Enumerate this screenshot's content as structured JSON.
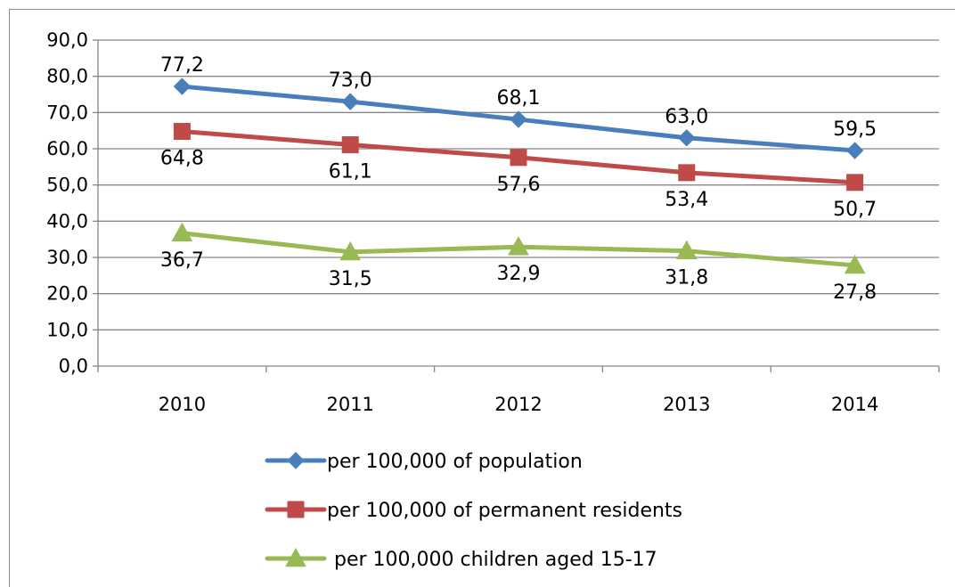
{
  "chart_data": {
    "type": "line",
    "categories": [
      "2010",
      "2011",
      "2012",
      "2013",
      "2014"
    ],
    "ylim": [
      0,
      90
    ],
    "y_ticks": [
      "0,0",
      "10,0",
      "20,0",
      "30,0",
      "40,0",
      "50,0",
      "60,0",
      "70,0",
      "80,0",
      "90,0"
    ],
    "grid": true,
    "legend_position": "bottom",
    "series": [
      {
        "name": "per 100,000 of population",
        "values": [
          77.2,
          73.0,
          68.1,
          63.0,
          59.5
        ],
        "labels": [
          "77,2",
          "73,0",
          "68,1",
          "63,0",
          "59,5"
        ],
        "color": "#4a7ebb",
        "marker": "diamond",
        "label_placement": "above"
      },
      {
        "name": "per 100,000 of permanent residents",
        "values": [
          64.8,
          61.1,
          57.6,
          53.4,
          50.7
        ],
        "labels": [
          "64,8",
          "61,1",
          "57,6",
          "53,4",
          "50,7"
        ],
        "color": "#be4b48",
        "marker": "square",
        "label_placement": "below"
      },
      {
        "name": "per 100,000 children aged 15-17",
        "values": [
          36.7,
          31.5,
          32.9,
          31.8,
          27.8
        ],
        "labels": [
          "36,7",
          "31,5",
          "32,9",
          "31,8",
          "27,8"
        ],
        "color": "#98b954",
        "marker": "triangle",
        "label_placement": "below"
      }
    ]
  }
}
